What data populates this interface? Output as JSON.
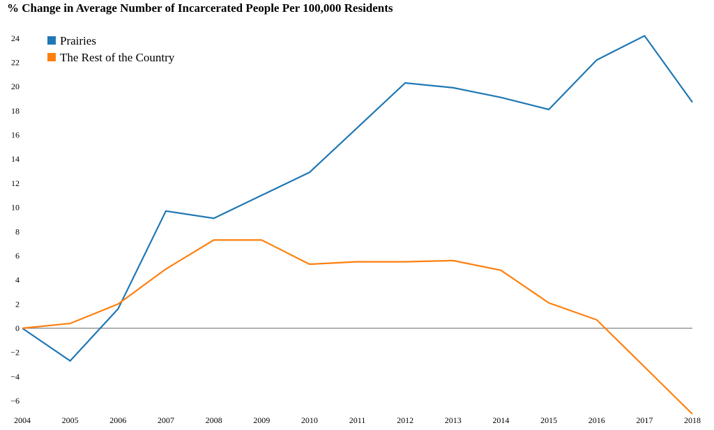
{
  "chart_data": {
    "type": "line",
    "title": "% Change in Average Number of Incarcerated People Per 100,000 Residents",
    "xlabel": "",
    "ylabel": "",
    "x": [
      "2004",
      "2005",
      "2006",
      "2007",
      "2008",
      "2009",
      "2010",
      "2011",
      "2012",
      "2013",
      "2014",
      "2015",
      "2016",
      "2017",
      "2018"
    ],
    "yticks": [
      "24",
      "22",
      "20",
      "18",
      "16",
      "14",
      "12",
      "10",
      "8",
      "6",
      "4",
      "2",
      "0",
      "−2",
      "−4",
      "−6"
    ],
    "ylim": [
      -7,
      24.5
    ],
    "grid": false,
    "legend_position": "top-left",
    "series": [
      {
        "name": "Prairies",
        "color": "#1f77b4",
        "values": [
          0,
          -2.7,
          1.6,
          9.7,
          9.1,
          11.0,
          12.9,
          16.6,
          20.3,
          19.9,
          19.1,
          18.1,
          22.2,
          24.2,
          18.7
        ]
      },
      {
        "name": "The Rest of the Country",
        "color": "#ff7f0e",
        "values": [
          0,
          0.4,
          2.0,
          4.9,
          7.3,
          7.3,
          5.3,
          5.5,
          5.5,
          5.6,
          4.8,
          2.1,
          0.7,
          -3.2,
          -7.1
        ]
      }
    ],
    "zero_line_color": "#808080"
  }
}
